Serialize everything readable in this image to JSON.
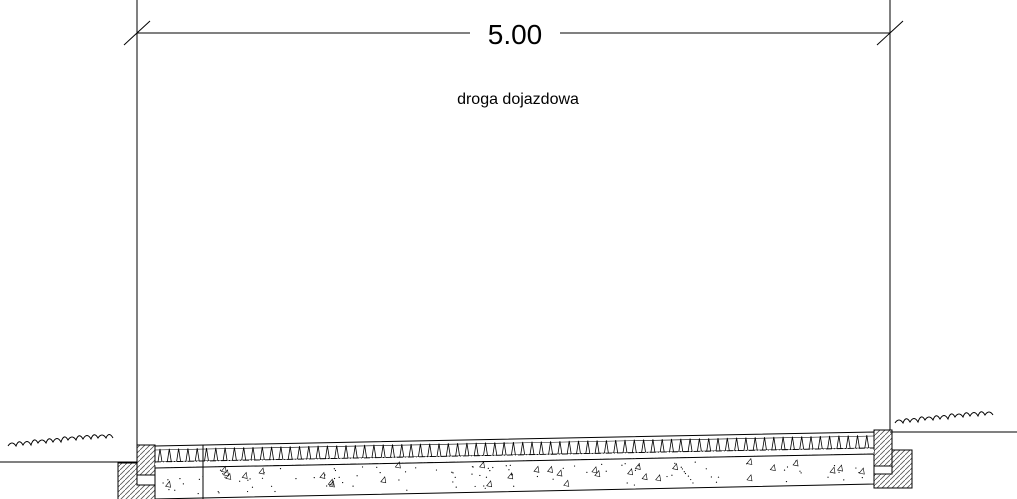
{
  "dimension": {
    "value": "5.00"
  },
  "road": {
    "label": "droga dojazdowa"
  },
  "colors": {
    "line": "#000000",
    "background": "#ffffff",
    "hatch": "#555555"
  }
}
